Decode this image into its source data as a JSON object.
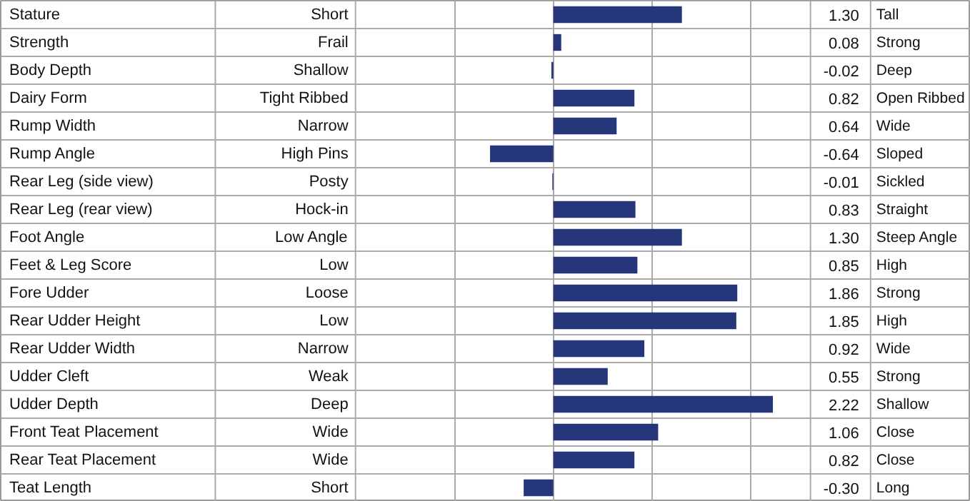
{
  "chart_data": {
    "type": "bar",
    "orientation": "horizontal",
    "color": "#25377a",
    "categories": [
      "Stature",
      "Strength",
      "Body Depth",
      "Dairy Form",
      "Rump Width",
      "Rump Angle",
      "Rear Leg (side view)",
      "Rear Leg (rear view)",
      "Foot Angle",
      "Feet & Leg Score",
      "Fore Udder",
      "Rear Udder Height",
      "Rear Udder Width",
      "Udder Cleft",
      "Udder Depth",
      "Front Teat Placement",
      "Rear Teat Placement",
      "Teat Length"
    ],
    "values": [
      1.3,
      0.08,
      -0.02,
      0.82,
      0.64,
      -0.64,
      -0.01,
      0.83,
      1.3,
      0.85,
      1.86,
      1.85,
      0.92,
      0.55,
      2.22,
      1.06,
      0.82,
      -0.3
    ],
    "value_labels": [
      "1.30",
      "0.08",
      "-0.02",
      "0.82",
      "0.64",
      "-0.64",
      "-0.01",
      "0.83",
      "1.30",
      "0.85",
      "1.86",
      "1.85",
      "0.92",
      "0.55",
      "2.22",
      "1.06",
      "0.82",
      "-0.30"
    ],
    "xlim": [
      -2,
      2.6
    ],
    "xticks": [
      {
        "value": -1,
        "label": null
      },
      {
        "value": 0,
        "label": null
      },
      {
        "value": 1,
        "label": null
      },
      {
        "value": 2,
        "label": null
      }
    ],
    "grid": "x",
    "annotations": [
      "Short",
      "Tall",
      "Frail",
      "Strong",
      "Shallow",
      "Deep",
      "Tight Ribbed",
      "Open Ribbed",
      "Narrow",
      "Wide",
      "High Pins",
      "Sloped",
      "Posty",
      "Sickled",
      "Hock-in",
      "Straight",
      "Low Angle",
      "Steep Angle",
      "Low",
      "High",
      "Loose",
      "Strong",
      "Low",
      "High",
      "Narrow",
      "Wide",
      "Weak",
      "Strong",
      "Deep",
      "Shallow",
      "Wide",
      "Close",
      "Wide",
      "Close",
      "Short",
      "Long"
    ]
  }
}
